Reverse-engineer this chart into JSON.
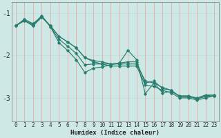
{
  "xlabel": "Humidex (Indice chaleur)",
  "ylabel": "",
  "xlim": [
    -0.5,
    23.5
  ],
  "ylim": [
    -3.55,
    -0.75
  ],
  "yticks": [
    -3,
    -2,
    -1
  ],
  "xticks": [
    0,
    1,
    2,
    3,
    4,
    5,
    6,
    7,
    8,
    9,
    10,
    11,
    12,
    13,
    14,
    15,
    16,
    17,
    18,
    19,
    20,
    21,
    22,
    23
  ],
  "bg_color": "#cde8e5",
  "line_color": "#2a7d6e",
  "grid_color_h": "#c5e0dc",
  "grid_color_v": "#e8b0b0",
  "lines": [
    {
      "x": [
        0,
        1,
        2,
        3,
        4,
        5,
        6,
        7,
        8,
        9,
        10,
        11,
        12,
        13,
        14,
        15,
        16,
        17,
        18,
        19,
        20,
        21,
        22,
        23
      ],
      "y": [
        -1.3,
        -1.15,
        -1.25,
        -1.08,
        -1.3,
        -1.55,
        -1.68,
        -1.82,
        -2.05,
        -2.15,
        -2.2,
        -2.25,
        -2.25,
        -2.25,
        -2.25,
        -2.7,
        -2.73,
        -2.82,
        -2.88,
        -3.0,
        -3.0,
        -3.05,
        -3.0,
        -2.95
      ]
    },
    {
      "x": [
        0,
        1,
        2,
        3,
        4,
        5,
        6,
        7,
        8,
        9,
        10,
        11,
        12,
        13,
        14,
        15,
        16,
        17,
        18,
        19,
        20,
        21,
        22,
        23
      ],
      "y": [
        -1.3,
        -1.18,
        -1.3,
        -1.1,
        -1.3,
        -1.55,
        -1.68,
        -1.82,
        -2.05,
        -2.12,
        -2.15,
        -2.2,
        -2.2,
        -2.2,
        -2.2,
        -2.6,
        -2.65,
        -2.75,
        -2.82,
        -2.97,
        -2.97,
        -3.02,
        -2.97,
        -2.95
      ]
    },
    {
      "x": [
        0,
        1,
        2,
        3,
        4,
        5,
        6,
        7,
        8,
        9,
        10,
        11,
        12,
        13,
        14,
        15,
        16,
        17,
        18,
        19,
        20,
        21,
        22,
        23
      ],
      "y": [
        -1.3,
        -1.18,
        -1.3,
        -1.08,
        -1.32,
        -1.7,
        -1.88,
        -2.1,
        -2.4,
        -2.3,
        -2.27,
        -2.22,
        -2.18,
        -1.88,
        -2.1,
        -2.9,
        -2.65,
        -2.88,
        -2.85,
        -2.95,
        -2.95,
        -3.0,
        -2.93,
        -2.93
      ]
    },
    {
      "x": [
        0,
        1,
        2,
        3,
        4,
        5,
        6,
        7,
        8,
        9,
        10,
        11,
        12,
        13,
        14,
        15,
        16,
        17,
        18,
        19,
        20,
        21,
        22,
        23
      ],
      "y": [
        -1.3,
        -1.15,
        -1.28,
        -1.06,
        -1.32,
        -1.62,
        -1.78,
        -1.95,
        -2.22,
        -2.2,
        -2.2,
        -2.2,
        -2.18,
        -2.15,
        -2.15,
        -2.65,
        -2.6,
        -2.78,
        -2.82,
        -2.97,
        -2.97,
        -3.02,
        -2.95,
        -2.93
      ]
    }
  ]
}
